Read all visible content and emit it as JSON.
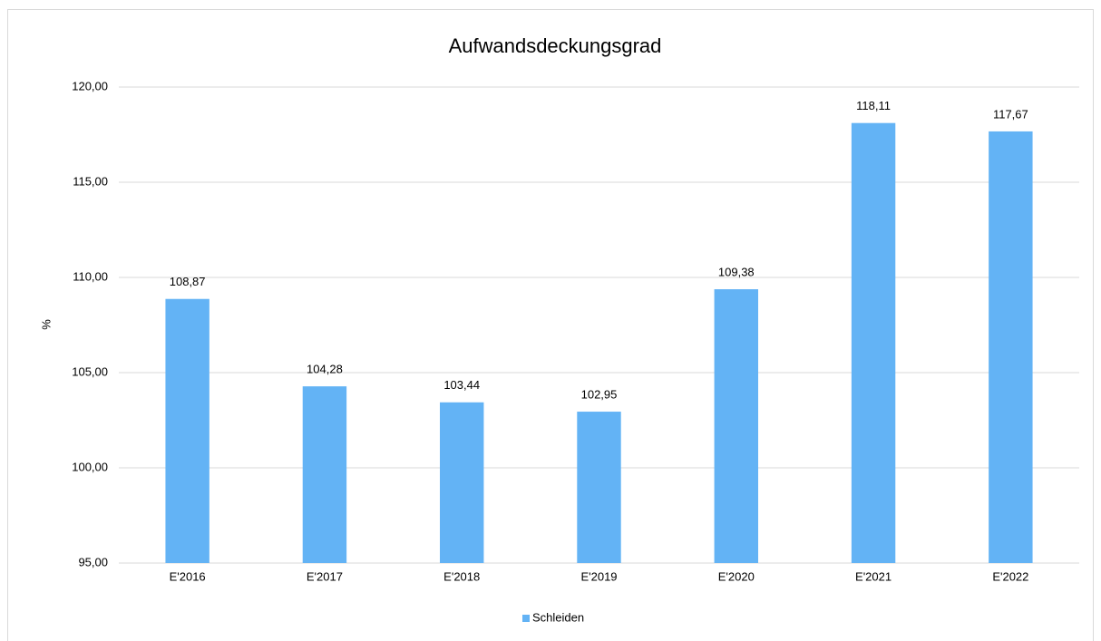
{
  "chart_data": {
    "type": "bar",
    "title": "Aufwandsdeckungsgrad",
    "y_label": "%",
    "categories": [
      "E'2016",
      "E'2017",
      "E'2018",
      "E'2019",
      "E'2020",
      "E'2021",
      "E'2022"
    ],
    "series": [
      {
        "name": "Schleiden",
        "color": "#63b3f5",
        "values": [
          108.87,
          104.28,
          103.44,
          102.95,
          109.38,
          118.11,
          117.67
        ],
        "value_labels": [
          "108,87",
          "104,28",
          "103,44",
          "102,95",
          "109,38",
          "118,11",
          "117,67"
        ]
      }
    ],
    "ylim": [
      95,
      120
    ],
    "yticks": [
      {
        "value": 95,
        "label": "95,00"
      },
      {
        "value": 100,
        "label": "100,00"
      },
      {
        "value": 105,
        "label": "105,00"
      },
      {
        "value": 110,
        "label": "110,00"
      },
      {
        "value": 115,
        "label": "115,00"
      },
      {
        "value": 120,
        "label": "120,00"
      }
    ],
    "grid": true,
    "legend": "bottom"
  }
}
